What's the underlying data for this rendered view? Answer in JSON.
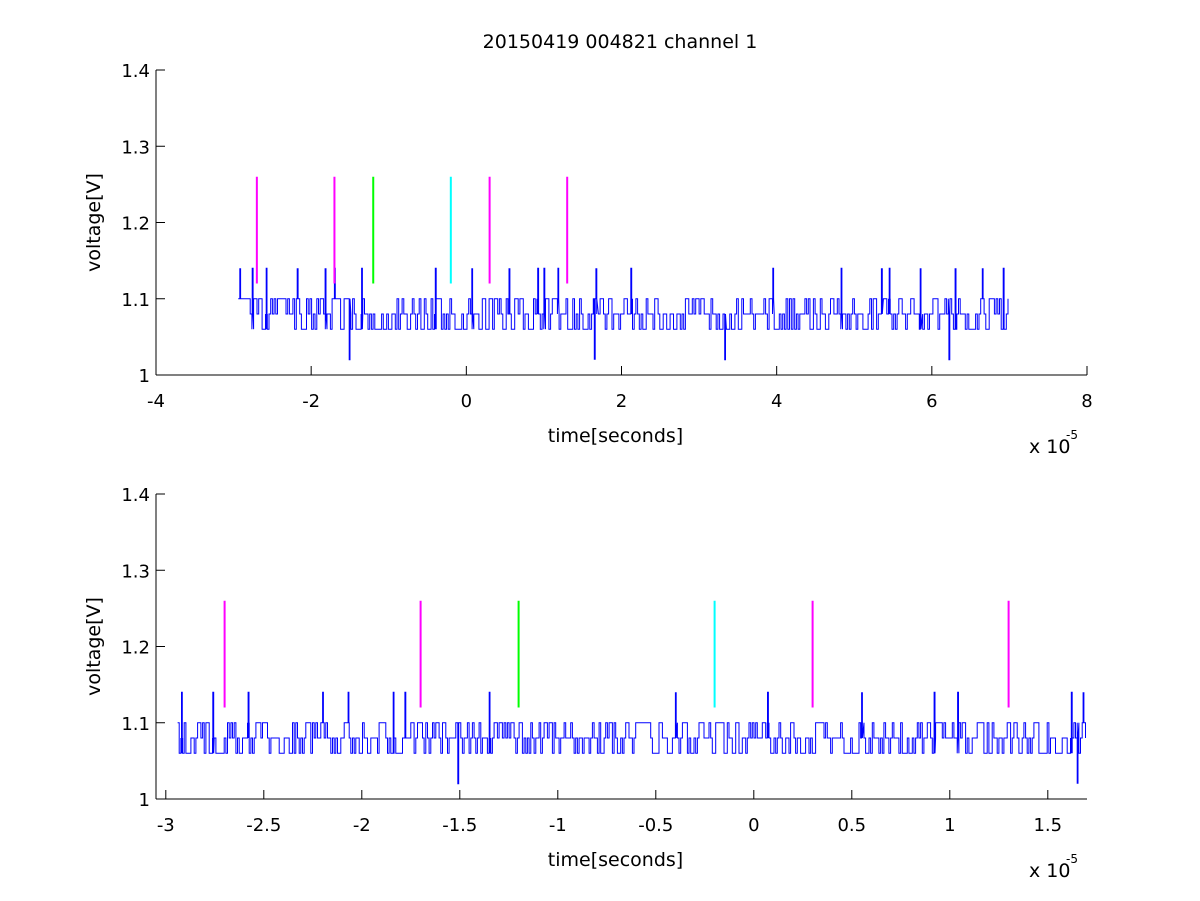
{
  "figure": {
    "title": "20150419 004821 channel 1"
  },
  "chart_data": [
    {
      "type": "line",
      "title": "20150419 004821 channel 1",
      "xlabel": "time[seconds]",
      "ylabel": "voltage[V]",
      "x_multiplier": "x 10",
      "x_multiplier_exp": "-5",
      "xlim": [
        -4,
        8
      ],
      "ylim": [
        1,
        1.4
      ],
      "xticks": [
        -4,
        -2,
        0,
        2,
        4,
        6,
        8
      ],
      "xtick_labels": [
        "-4",
        "-2",
        "0",
        "2",
        "4",
        "6",
        "8"
      ],
      "yticks": [
        1,
        1.1,
        1.2,
        1.3,
        1.4
      ],
      "ytick_labels": [
        "1",
        "1.1",
        "1.2",
        "1.3",
        "1.4"
      ],
      "grid": false,
      "signal": {
        "color": "#0000ff",
        "x_start": -2.94,
        "x_end": 7.0,
        "baseline_levels": [
          1.06,
          1.08,
          1.1
        ],
        "spikes_up": [
          {
            "x": -2.92,
            "y": 1.14
          },
          {
            "x": -2.76,
            "y": 1.14
          },
          {
            "x": -2.58,
            "y": 1.14
          },
          {
            "x": -2.18,
            "y": 1.14
          },
          {
            "x": -1.82,
            "y": 1.14
          },
          {
            "x": -1.7,
            "y": 1.14
          },
          {
            "x": -1.35,
            "y": 1.14
          },
          {
            "x": -0.4,
            "y": 1.14
          },
          {
            "x": 0.07,
            "y": 1.14
          },
          {
            "x": 0.55,
            "y": 1.14
          },
          {
            "x": 0.92,
            "y": 1.14
          },
          {
            "x": 1.0,
            "y": 1.14
          },
          {
            "x": 1.18,
            "y": 1.14
          },
          {
            "x": 1.67,
            "y": 1.14
          },
          {
            "x": 2.12,
            "y": 1.14
          },
          {
            "x": 3.95,
            "y": 1.14
          },
          {
            "x": 4.83,
            "y": 1.14
          },
          {
            "x": 5.35,
            "y": 1.14
          },
          {
            "x": 5.45,
            "y": 1.14
          },
          {
            "x": 5.85,
            "y": 1.14
          },
          {
            "x": 6.3,
            "y": 1.14
          },
          {
            "x": 6.65,
            "y": 1.14
          },
          {
            "x": 6.92,
            "y": 1.14
          }
        ],
        "spikes_down": [
          {
            "x": -1.51,
            "y": 1.02
          },
          {
            "x": 1.65,
            "y": 1.02
          },
          {
            "x": 3.33,
            "y": 1.02
          },
          {
            "x": 6.22,
            "y": 1.02
          }
        ]
      },
      "markers": [
        {
          "x": -2.7,
          "y_low": 1.12,
          "y_high": 1.26,
          "color": "#ff00ff"
        },
        {
          "x": -1.7,
          "y_low": 1.12,
          "y_high": 1.26,
          "color": "#ff00ff"
        },
        {
          "x": -1.2,
          "y_low": 1.12,
          "y_high": 1.26,
          "color": "#00ff00"
        },
        {
          "x": -0.2,
          "y_low": 1.12,
          "y_high": 1.26,
          "color": "#00ffff"
        },
        {
          "x": 0.3,
          "y_low": 1.12,
          "y_high": 1.26,
          "color": "#ff00ff"
        },
        {
          "x": 1.3,
          "y_low": 1.12,
          "y_high": 1.26,
          "color": "#ff00ff"
        }
      ]
    },
    {
      "type": "line",
      "title": "",
      "xlabel": "time[seconds]",
      "ylabel": "voltage[V]",
      "x_multiplier": "x 10",
      "x_multiplier_exp": "-5",
      "xlim": [
        -3.05,
        1.7
      ],
      "ylim": [
        1,
        1.4
      ],
      "xticks": [
        -3,
        -2.5,
        -2,
        -1.5,
        -1,
        -0.5,
        0,
        0.5,
        1,
        1.5
      ],
      "xtick_labels": [
        "-3",
        "-2.5",
        "-2",
        "-1.5",
        "-1",
        "-0.5",
        "0",
        "0.5",
        "1",
        "1.5"
      ],
      "yticks": [
        1,
        1.1,
        1.2,
        1.3,
        1.4
      ],
      "ytick_labels": [
        "1",
        "1.1",
        "1.2",
        "1.3",
        "1.4"
      ],
      "grid": false,
      "signal": {
        "color": "#0000ff",
        "x_start": -2.94,
        "x_end": 1.7,
        "baseline_levels": [
          1.06,
          1.08,
          1.1
        ],
        "spikes_up": [
          {
            "x": -2.92,
            "y": 1.14
          },
          {
            "x": -2.76,
            "y": 1.14
          },
          {
            "x": -2.58,
            "y": 1.14
          },
          {
            "x": -2.2,
            "y": 1.14
          },
          {
            "x": -2.07,
            "y": 1.14
          },
          {
            "x": -1.84,
            "y": 1.14
          },
          {
            "x": -1.78,
            "y": 1.14
          },
          {
            "x": -1.35,
            "y": 1.14
          },
          {
            "x": -0.4,
            "y": 1.14
          },
          {
            "x": 0.07,
            "y": 1.14
          },
          {
            "x": 0.55,
            "y": 1.14
          },
          {
            "x": 0.92,
            "y": 1.14
          },
          {
            "x": 1.04,
            "y": 1.14
          },
          {
            "x": 1.62,
            "y": 1.14
          },
          {
            "x": 1.68,
            "y": 1.14
          }
        ],
        "spikes_down": [
          {
            "x": -1.51,
            "y": 1.02
          },
          {
            "x": 1.65,
            "y": 1.02
          }
        ]
      },
      "markers": [
        {
          "x": -2.7,
          "y_low": 1.12,
          "y_high": 1.26,
          "color": "#ff00ff"
        },
        {
          "x": -1.7,
          "y_low": 1.12,
          "y_high": 1.26,
          "color": "#ff00ff"
        },
        {
          "x": -1.2,
          "y_low": 1.12,
          "y_high": 1.26,
          "color": "#00ff00"
        },
        {
          "x": -0.2,
          "y_low": 1.12,
          "y_high": 1.26,
          "color": "#00ffff"
        },
        {
          "x": 0.3,
          "y_low": 1.12,
          "y_high": 1.26,
          "color": "#ff00ff"
        },
        {
          "x": 1.3,
          "y_low": 1.12,
          "y_high": 1.26,
          "color": "#ff00ff"
        }
      ]
    }
  ]
}
